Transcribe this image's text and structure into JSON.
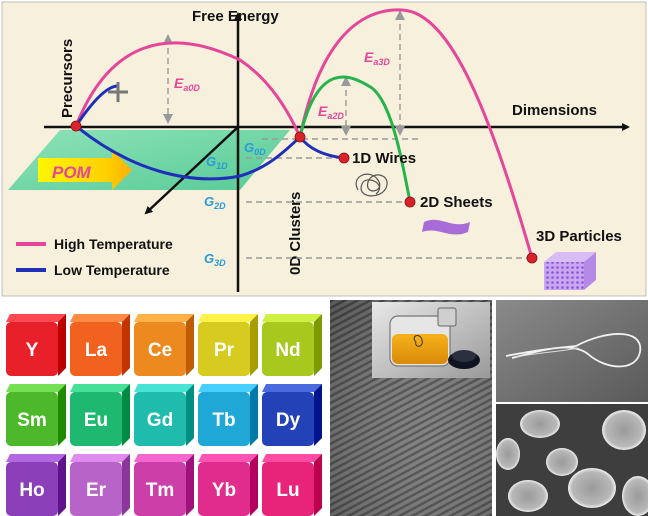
{
  "diagram": {
    "y_axis_label": "Free Energy",
    "x_axis_label": "Dimensions",
    "precursors_label": "Precursors",
    "pom_label": "POM",
    "clusters_label": "0D Clusters",
    "products": [
      "1D Wires",
      "2D Sheets",
      "3D Particles"
    ],
    "energy_levels": [
      "G0D",
      "G1D",
      "G2D",
      "G3D"
    ],
    "barriers": [
      "Ea0D",
      "Ea2D",
      "Ea3D"
    ],
    "legend": [
      {
        "label": "High Temperature",
        "color": "#e5469a"
      },
      {
        "label": "Low Temperature",
        "color": "#1f2fb8"
      }
    ],
    "colors": {
      "background": "#f7f0dc",
      "high_temp": "#e5469a",
      "mid_path": "#26b34b",
      "low_temp": "#1f2fb8",
      "level_label": "#2a9bd8",
      "point": "#d8232a"
    }
  },
  "elements": [
    {
      "symbol": "Y",
      "color": "#e8202a"
    },
    {
      "symbol": "La",
      "color": "#f0621e"
    },
    {
      "symbol": "Ce",
      "color": "#ec8a1f"
    },
    {
      "symbol": "Pr",
      "color": "#d6cb1e"
    },
    {
      "symbol": "Nd",
      "color": "#a7c91e"
    },
    {
      "symbol": "Sm",
      "color": "#4db82a"
    },
    {
      "symbol": "Eu",
      "color": "#1fb870"
    },
    {
      "symbol": "Gd",
      "color": "#1fbcae"
    },
    {
      "symbol": "Tb",
      "color": "#1fa8d6"
    },
    {
      "symbol": "Dy",
      "color": "#2342b8"
    },
    {
      "symbol": "Ho",
      "color": "#8b3fb8"
    },
    {
      "symbol": "Er",
      "color": "#b863c8"
    },
    {
      "symbol": "Tm",
      "color": "#cc3fa8"
    },
    {
      "symbol": "Yb",
      "color": "#e02c8c"
    },
    {
      "symbol": "Lu",
      "color": "#e8247a"
    }
  ]
}
